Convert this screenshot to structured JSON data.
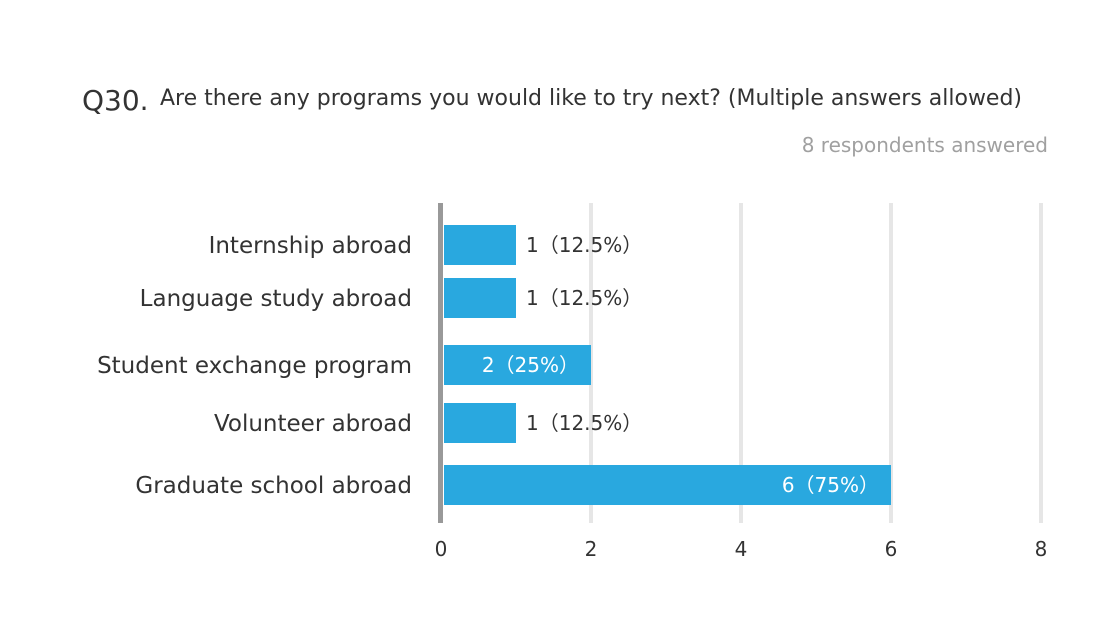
{
  "question": {
    "number": "Q30.",
    "title": "Are there any programs you would like to try next? (Multiple answers allowed)",
    "respondents": "8 respondents answered"
  },
  "colors": {
    "bar": "#29a8df",
    "grid": "#e6e6e6",
    "axis": "#999999"
  },
  "chart_data": {
    "type": "bar",
    "orientation": "horizontal",
    "categories": [
      "Internship abroad",
      "Language study abroad",
      "Student exchange program",
      "Volunteer abroad",
      "Graduate school abroad"
    ],
    "values": [
      1,
      1,
      2,
      1,
      6
    ],
    "value_labels": [
      "1（12.5%）",
      "1（12.5%）",
      "2（25%）",
      "1（12.5%）",
      "6（75%）"
    ],
    "xlim": [
      0,
      8
    ],
    "xticks": [
      "0",
      "2",
      "4",
      "6",
      "8"
    ],
    "grid": true
  }
}
